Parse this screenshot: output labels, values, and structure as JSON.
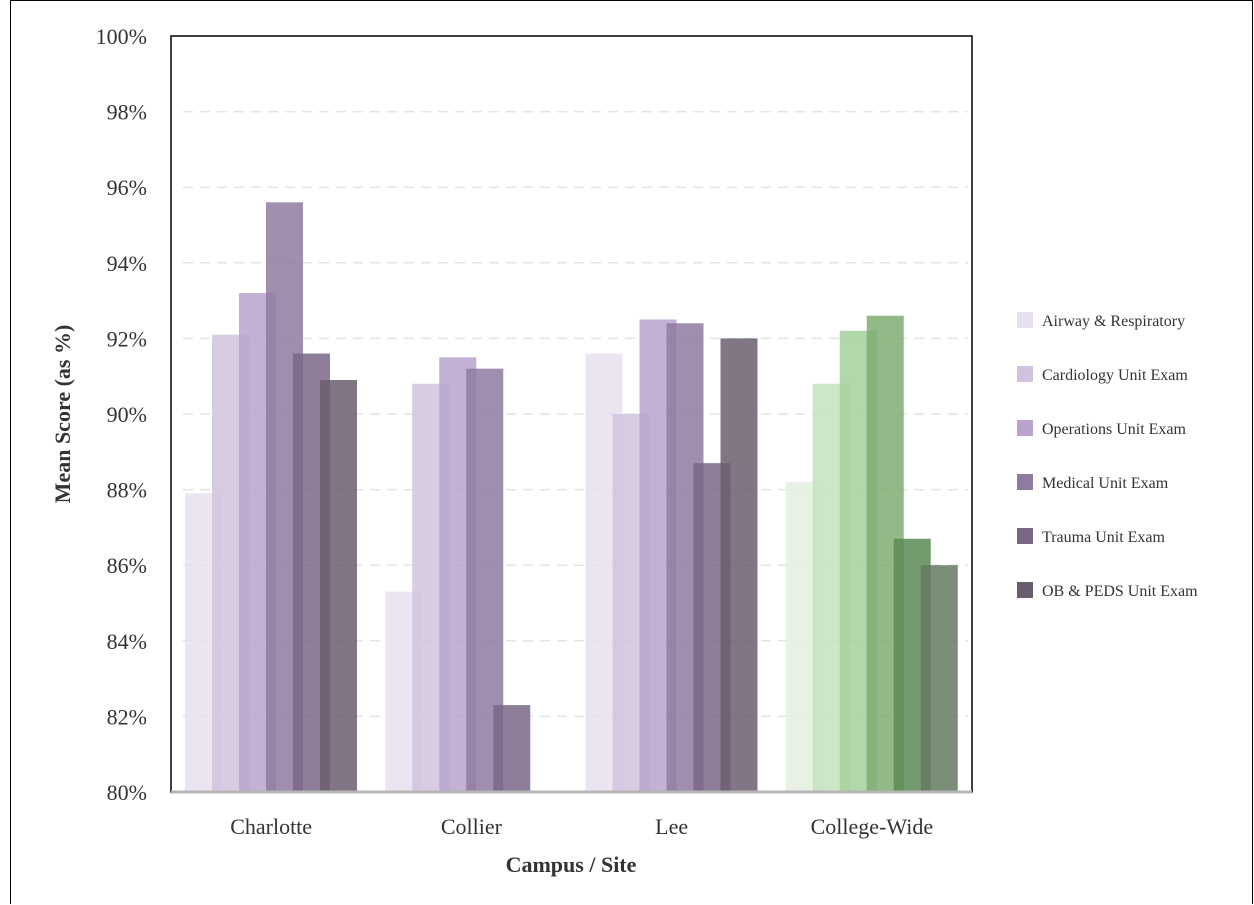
{
  "chart_data": {
    "type": "bar",
    "xlabel": "Campus / Site",
    "ylabel": "Mean Score (as %)",
    "ylim": [
      80,
      100
    ],
    "yticks": [
      "80%",
      "82%",
      "84%",
      "86%",
      "88%",
      "90%",
      "92%",
      "94%",
      "96%",
      "98%",
      "100%"
    ],
    "grid": "horizontal dashed",
    "legend_position": "right",
    "categories": [
      "Charlotte",
      "Collier",
      "Lee",
      "College-Wide"
    ],
    "series": [
      {
        "name": "Airway & Respiratory",
        "values": [
          87.9,
          85.3,
          91.6,
          88.2
        ]
      },
      {
        "name": "Cardiology Unit Exam",
        "values": [
          92.1,
          90.8,
          90.0,
          90.8
        ]
      },
      {
        "name": "Operations Unit Exam",
        "values": [
          93.2,
          91.5,
          92.5,
          92.2
        ]
      },
      {
        "name": "Medical Unit Exam",
        "values": [
          95.6,
          91.2,
          92.4,
          92.6
        ]
      },
      {
        "name": "Trauma Unit Exam",
        "values": [
          91.6,
          82.3,
          88.7,
          86.7
        ]
      },
      {
        "name": "OB & PEDS Unit Exam",
        "values": [
          90.9,
          80.0,
          92.0,
          86.0
        ]
      }
    ],
    "colors": {
      "purple": [
        "#e7e0ef",
        "#d1c3dd",
        "#b8a3cc",
        "#8f7aa0",
        "#7a6787",
        "#6a5e6e"
      ],
      "green": [
        "#e3f0e0",
        "#c4e2be",
        "#a5d09c",
        "#7fad72",
        "#5c8a55",
        "#647a62"
      ],
      "highlight_category": "College-Wide"
    }
  }
}
